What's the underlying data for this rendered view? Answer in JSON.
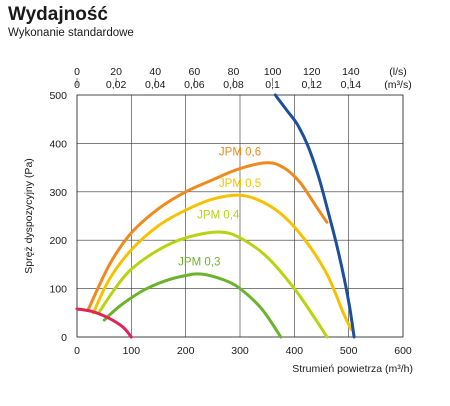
{
  "header": {
    "title": "Wydajność",
    "subtitle": "Wykonanie standardowe"
  },
  "chart_data": {
    "type": "line",
    "xlabel": "Strumień powietrza (m³/h)",
    "ylabel": "Spręż dyspozycyjny (Pa)",
    "xlim": [
      0,
      600
    ],
    "ylim": [
      0,
      500
    ],
    "x_ticks": [
      0,
      100,
      200,
      300,
      400,
      500,
      600
    ],
    "y_ticks": [
      0,
      100,
      200,
      300,
      400,
      500
    ],
    "grid": true,
    "top_axis_ls": {
      "unit": "(l/s)",
      "ticks": [
        {
          "label": "0",
          "m3h": 0
        },
        {
          "label": "20",
          "m3h": 72
        },
        {
          "label": "40",
          "m3h": 144
        },
        {
          "label": "60",
          "m3h": 216
        },
        {
          "label": "80",
          "m3h": 288
        },
        {
          "label": "100",
          "m3h": 360
        },
        {
          "label": "120",
          "m3h": 432
        },
        {
          "label": "140",
          "m3h": 504
        }
      ]
    },
    "top_axis_m3s": {
      "unit": "(m³/s)",
      "ticks": [
        {
          "label": "0",
          "m3h": 0
        },
        {
          "label": "0,02",
          "m3h": 72
        },
        {
          "label": "0,04",
          "m3h": 144
        },
        {
          "label": "0,06",
          "m3h": 216
        },
        {
          "label": "0,08",
          "m3h": 288
        },
        {
          "label": "0,1",
          "m3h": 360
        },
        {
          "label": "0,12",
          "m3h": 432
        },
        {
          "label": "0,14",
          "m3h": 504
        }
      ]
    },
    "series": [
      {
        "name": "JPM 0,6",
        "color": "#f0891e",
        "label_at": [
          300,
          375
        ],
        "points": [
          [
            20,
            55
          ],
          [
            60,
            150
          ],
          [
            100,
            215
          ],
          [
            150,
            265
          ],
          [
            200,
            300
          ],
          [
            250,
            325
          ],
          [
            300,
            348
          ],
          [
            350,
            360
          ],
          [
            380,
            350
          ],
          [
            410,
            320
          ],
          [
            440,
            270
          ],
          [
            460,
            237
          ]
        ]
      },
      {
        "name": "JPM 0,5",
        "color": "#f6c200",
        "label_at": [
          300,
          310
        ],
        "points": [
          [
            30,
            50
          ],
          [
            60,
            120
          ],
          [
            100,
            180
          ],
          [
            150,
            230
          ],
          [
            200,
            262
          ],
          [
            250,
            285
          ],
          [
            300,
            293
          ],
          [
            340,
            280
          ],
          [
            380,
            250
          ],
          [
            420,
            200
          ],
          [
            460,
            130
          ],
          [
            490,
            50
          ],
          [
            505,
            15
          ]
        ]
      },
      {
        "name": "JPM 0,4",
        "color": "#b8d312",
        "label_at": [
          260,
          245
        ],
        "points": [
          [
            40,
            50
          ],
          [
            70,
            100
          ],
          [
            100,
            140
          ],
          [
            150,
            180
          ],
          [
            200,
            205
          ],
          [
            260,
            217
          ],
          [
            300,
            205
          ],
          [
            350,
            165
          ],
          [
            400,
            100
          ],
          [
            440,
            35
          ],
          [
            460,
            0
          ]
        ]
      },
      {
        "name": "JPM 0,3",
        "color": "#6cb32c",
        "label_at": [
          225,
          148
        ],
        "points": [
          [
            50,
            35
          ],
          [
            80,
            65
          ],
          [
            120,
            95
          ],
          [
            160,
            115
          ],
          [
            200,
            127
          ],
          [
            230,
            130
          ],
          [
            270,
            118
          ],
          [
            300,
            100
          ],
          [
            340,
            58
          ],
          [
            375,
            0
          ]
        ]
      },
      {
        "name": "",
        "color": "#1c4f9c",
        "points": [
          [
            365,
            500
          ],
          [
            385,
            470
          ],
          [
            405,
            440
          ],
          [
            425,
            395
          ],
          [
            445,
            330
          ],
          [
            462,
            260
          ],
          [
            478,
            190
          ],
          [
            492,
            120
          ],
          [
            502,
            60
          ],
          [
            510,
            0
          ]
        ]
      },
      {
        "name": "",
        "color": "#e0245a",
        "points": [
          [
            0,
            58
          ],
          [
            30,
            52
          ],
          [
            60,
            38
          ],
          [
            85,
            20
          ],
          [
            100,
            0
          ]
        ]
      }
    ]
  }
}
